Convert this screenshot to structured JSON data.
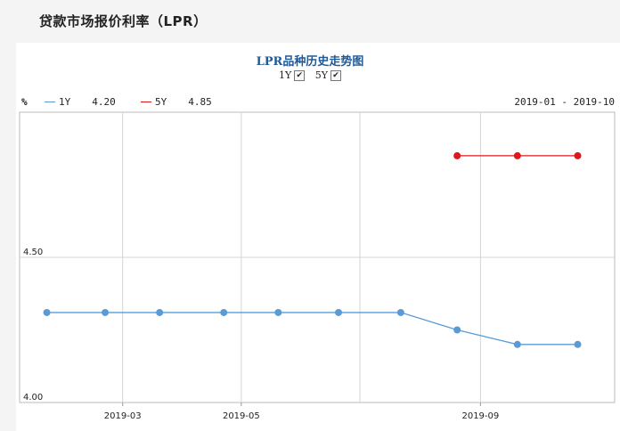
{
  "page": {
    "title": "贷款市场报价利率（LPR）"
  },
  "chart_data": {
    "type": "line",
    "title": "LPR品种历史走势图",
    "ylabel": "%",
    "range_label": "2019-01 - 2019-10",
    "ylim": [
      4.0,
      5.0
    ],
    "yticks": [
      "4.00",
      "4.50"
    ],
    "xticks": [
      "2019-03",
      "2019-05",
      "2019-09"
    ],
    "toggles": [
      {
        "label": "1Y",
        "checked": true
      },
      {
        "label": "5Y",
        "checked": true
      }
    ],
    "series": [
      {
        "name": "1Y",
        "latest": "4.20",
        "color": "#5b9bd5",
        "x": [
          "2019-01-21",
          "2019-02-20",
          "2019-03-20",
          "2019-04-22",
          "2019-05-20",
          "2019-06-20",
          "2019-07-22",
          "2019-08-20",
          "2019-09-20",
          "2019-10-21"
        ],
        "values": [
          4.31,
          4.31,
          4.31,
          4.31,
          4.31,
          4.31,
          4.31,
          4.25,
          4.2,
          4.2
        ]
      },
      {
        "name": "5Y",
        "latest": "4.85",
        "color": "#e0161b",
        "x": [
          "2019-08-20",
          "2019-09-20",
          "2019-10-21"
        ],
        "values": [
          4.85,
          4.85,
          4.85
        ]
      }
    ]
  }
}
